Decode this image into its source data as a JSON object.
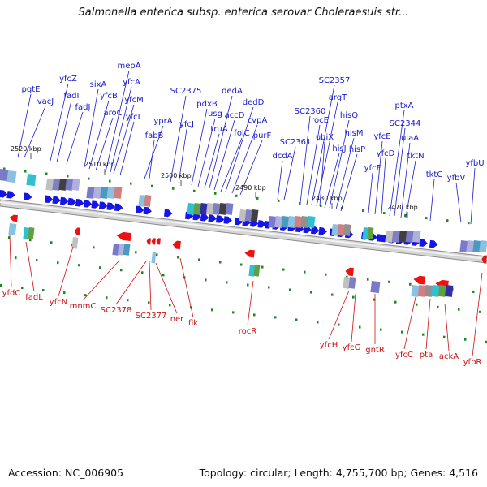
{
  "title": "Salmonella enterica subsp. enterica serovar Choleraesuis str...",
  "footer": {
    "accession": "Accession: NC_006905",
    "summary": "Topology: circular; Length: 4,755,700 bp; Genes: 4,516"
  },
  "colors": {
    "top_label": "#1a1acc",
    "bottom_label": "#cc1111",
    "forward_gene": "#1515e6",
    "reverse_gene": "#ee1111",
    "tick": "#1a8a1a",
    "backbone": "#b8b8b8",
    "scale_text": "#111111"
  },
  "scale_labels": [
    "2520 kbp",
    "2510 kbp",
    "2500 kbp",
    "2490 kbp",
    "2480 kbp",
    "2470 kbp"
  ],
  "top_genes": [
    "pgtE",
    "vacJ",
    "yfcZ",
    "fadI",
    "fadJ",
    "sixA",
    "yfcB",
    "aroC",
    "mepA",
    "yfcA",
    "yfcM",
    "yfcL",
    "yprA",
    "fabB",
    "SC2375",
    "yfcJ",
    "pdxB",
    "usg",
    "truA",
    "dedA",
    "accD",
    "folC",
    "dedD",
    "cvpA",
    "purF",
    "dcdA",
    "SC2361",
    "SC2360",
    "rocE",
    "SC2357",
    "argT",
    "ubiX",
    "hisJ",
    "hisQ",
    "hisM",
    "hisP",
    "yfcF",
    "yfcE",
    "yfcD",
    "ptxA",
    "SC2344",
    "ulaA",
    "tktN",
    "tktC",
    "yfbV",
    "yfbU"
  ],
  "bottom_genes": [
    "yfdC",
    "fadL",
    "yfcN",
    "mnmC",
    "SC2378",
    "SC2377",
    "ner",
    "flk",
    "rocR",
    "yfcH",
    "yfcG",
    "gntR",
    "yfcC",
    "pta",
    "ackA",
    "yfbR"
  ]
}
